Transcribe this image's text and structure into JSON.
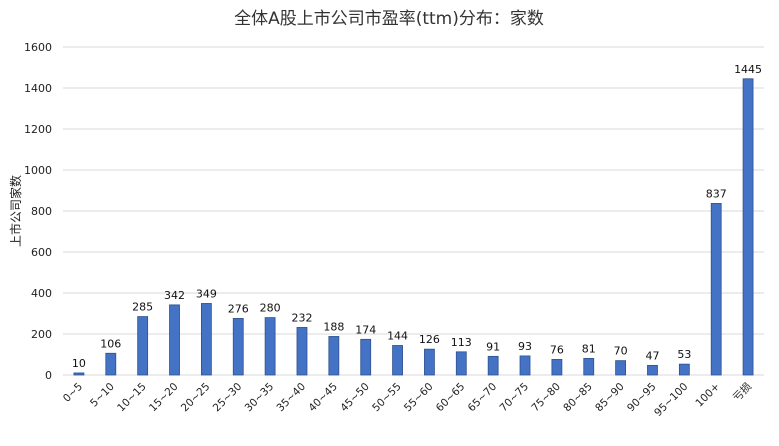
{
  "chart_data": {
    "type": "bar",
    "title": "全体A股上市公司市盈率(ttm)分布：家数",
    "xlabel": "",
    "ylabel": "上市公司家数",
    "ylim": [
      0,
      1600
    ],
    "yticks": [
      0,
      200,
      400,
      600,
      800,
      1000,
      1200,
      1400,
      1600
    ],
    "grid": true,
    "legend": "none",
    "bar_color": "#4472c4",
    "categories": [
      "0~5",
      "5~10",
      "10~15",
      "15~20",
      "20~25",
      "25~30",
      "30~35",
      "35~40",
      "40~45",
      "45~50",
      "50~55",
      "55~60",
      "60~65",
      "65~70",
      "70~75",
      "75~80",
      "80~85",
      "85~90",
      "90~95",
      "95~100",
      "100+",
      "亏损"
    ],
    "values": [
      10,
      106,
      285,
      342,
      349,
      276,
      280,
      232,
      188,
      174,
      144,
      126,
      113,
      91,
      93,
      76,
      81,
      70,
      47,
      53,
      837,
      1445
    ]
  }
}
